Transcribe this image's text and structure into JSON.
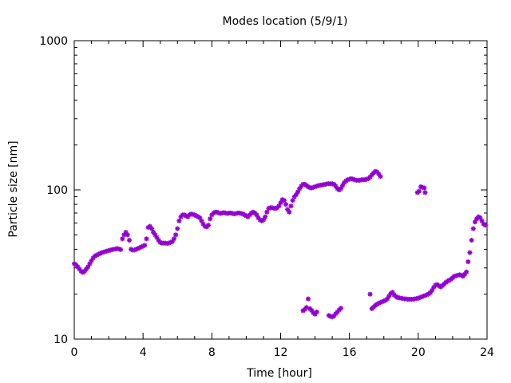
{
  "chart_data": {
    "type": "scatter",
    "title": "Modes location (5/9/1)",
    "xlabel": "Time [hour]",
    "ylabel": "Particle size [nm]",
    "xlim": [
      0,
      24
    ],
    "ylim": [
      10,
      1000
    ],
    "yscale": "log",
    "x_ticks": [
      0,
      4,
      8,
      12,
      16,
      20,
      24
    ],
    "x_tick_labels": [
      "0",
      "4",
      "8",
      "12",
      "16",
      "20",
      "24"
    ],
    "y_ticks": [
      10,
      100,
      1000
    ],
    "y_tick_labels": [
      "10",
      "100",
      "1000"
    ],
    "grid": false,
    "marker_color": "#9400d3",
    "series": [
      {
        "points": [
          [
            0.0,
            32
          ],
          [
            0.1,
            31.5
          ],
          [
            0.2,
            30.5
          ],
          [
            0.3,
            29.5
          ],
          [
            0.4,
            28.5
          ],
          [
            0.5,
            28
          ],
          [
            0.6,
            28.5
          ],
          [
            0.7,
            29.5
          ],
          [
            0.8,
            30.5
          ],
          [
            0.9,
            32
          ],
          [
            1.0,
            33.5
          ],
          [
            1.1,
            35
          ],
          [
            1.2,
            36
          ],
          [
            1.3,
            36.5
          ],
          [
            1.4,
            37
          ],
          [
            1.5,
            37.5
          ],
          [
            1.6,
            38
          ],
          [
            1.7,
            38.3
          ],
          [
            1.8,
            38.6
          ],
          [
            1.9,
            38.9
          ],
          [
            2.0,
            39.2
          ],
          [
            2.1,
            39.5
          ],
          [
            2.2,
            39.8
          ],
          [
            2.3,
            40
          ],
          [
            2.4,
            40.2
          ],
          [
            2.5,
            40.5
          ],
          [
            2.6,
            40.2
          ],
          [
            2.7,
            39.8
          ],
          [
            2.8,
            47
          ],
          [
            2.9,
            50
          ],
          [
            3.0,
            52
          ],
          [
            3.1,
            50
          ],
          [
            3.2,
            46
          ],
          [
            3.3,
            40
          ],
          [
            3.4,
            39.5
          ],
          [
            3.5,
            39.5
          ],
          [
            3.6,
            40
          ],
          [
            3.7,
            40.5
          ],
          [
            3.8,
            41
          ],
          [
            3.9,
            41.5
          ],
          [
            4.0,
            42
          ],
          [
            4.1,
            42.5
          ],
          [
            4.2,
            47
          ],
          [
            4.3,
            56
          ],
          [
            4.4,
            57
          ],
          [
            4.5,
            55
          ],
          [
            4.6,
            52
          ],
          [
            4.7,
            50
          ],
          [
            4.8,
            48
          ],
          [
            4.9,
            46
          ],
          [
            5.0,
            44.5
          ],
          [
            5.1,
            44
          ],
          [
            5.2,
            44
          ],
          [
            5.3,
            44
          ],
          [
            5.4,
            43.8
          ],
          [
            5.5,
            44
          ],
          [
            5.6,
            44.5
          ],
          [
            5.7,
            45
          ],
          [
            5.8,
            47
          ],
          [
            5.9,
            50
          ],
          [
            6.0,
            55
          ],
          [
            6.1,
            62
          ],
          [
            6.2,
            66
          ],
          [
            6.3,
            68
          ],
          [
            6.4,
            68
          ],
          [
            6.5,
            67
          ],
          [
            6.6,
            66
          ],
          [
            6.7,
            68
          ],
          [
            6.8,
            69
          ],
          [
            6.9,
            68.5
          ],
          [
            7.0,
            68
          ],
          [
            7.1,
            67
          ],
          [
            7.2,
            66
          ],
          [
            7.3,
            65
          ],
          [
            7.4,
            62
          ],
          [
            7.5,
            59
          ],
          [
            7.6,
            57
          ],
          [
            7.7,
            56.5
          ],
          [
            7.8,
            58
          ],
          [
            7.9,
            64
          ],
          [
            8.0,
            68
          ],
          [
            8.1,
            70
          ],
          [
            8.2,
            71
          ],
          [
            8.3,
            71
          ],
          [
            8.4,
            70
          ],
          [
            8.5,
            69.5
          ],
          [
            8.6,
            70
          ],
          [
            8.7,
            70.5
          ],
          [
            8.8,
            70
          ],
          [
            8.9,
            69.5
          ],
          [
            9.0,
            70
          ],
          [
            9.1,
            70
          ],
          [
            9.2,
            69.5
          ],
          [
            9.3,
            69
          ],
          [
            9.4,
            69.5
          ],
          [
            9.5,
            70
          ],
          [
            9.6,
            70
          ],
          [
            9.7,
            69.5
          ],
          [
            9.8,
            69
          ],
          [
            9.9,
            68
          ],
          [
            10.0,
            67
          ],
          [
            10.1,
            66
          ],
          [
            10.2,
            68
          ],
          [
            10.3,
            70
          ],
          [
            10.4,
            71
          ],
          [
            10.5,
            70
          ],
          [
            10.6,
            68
          ],
          [
            10.7,
            65
          ],
          [
            10.8,
            63
          ],
          [
            10.9,
            62
          ],
          [
            11.0,
            63
          ],
          [
            11.1,
            66
          ],
          [
            11.2,
            71
          ],
          [
            11.3,
            75
          ],
          [
            11.4,
            76
          ],
          [
            11.5,
            76
          ],
          [
            11.6,
            75.5
          ],
          [
            11.7,
            75
          ],
          [
            11.8,
            76
          ],
          [
            11.9,
            78
          ],
          [
            12.0,
            82
          ],
          [
            12.1,
            86
          ],
          [
            12.2,
            85
          ],
          [
            12.3,
            80
          ],
          [
            12.4,
            74
          ],
          [
            12.5,
            71
          ],
          [
            12.6,
            78
          ],
          [
            12.7,
            85
          ],
          [
            12.8,
            90
          ],
          [
            12.9,
            93
          ],
          [
            13.0,
            97
          ],
          [
            13.1,
            102
          ],
          [
            13.2,
            106
          ],
          [
            13.3,
            109
          ],
          [
            13.4,
            109
          ],
          [
            13.5,
            107
          ],
          [
            13.6,
            105
          ],
          [
            13.7,
            103.5
          ],
          [
            13.8,
            103
          ],
          [
            13.9,
            104
          ],
          [
            14.0,
            105
          ],
          [
            14.1,
            106
          ],
          [
            14.2,
            107
          ],
          [
            14.3,
            107.5
          ],
          [
            14.4,
            108
          ],
          [
            14.5,
            108.5
          ],
          [
            14.6,
            109
          ],
          [
            14.7,
            110
          ],
          [
            14.8,
            110
          ],
          [
            14.9,
            110
          ],
          [
            15.0,
            110
          ],
          [
            15.1,
            109
          ],
          [
            15.2,
            106
          ],
          [
            15.3,
            102
          ],
          [
            15.4,
            100
          ],
          [
            15.5,
            102
          ],
          [
            15.6,
            107
          ],
          [
            15.7,
            112
          ],
          [
            15.8,
            115
          ],
          [
            15.9,
            117
          ],
          [
            16.0,
            118
          ],
          [
            16.1,
            119
          ],
          [
            16.2,
            118
          ],
          [
            16.3,
            117
          ],
          [
            16.4,
            116
          ],
          [
            16.5,
            116
          ],
          [
            16.6,
            116
          ],
          [
            16.7,
            117
          ],
          [
            16.8,
            117
          ],
          [
            16.9,
            117
          ],
          [
            17.0,
            118
          ],
          [
            17.1,
            119
          ],
          [
            17.2,
            122
          ],
          [
            17.3,
            126
          ],
          [
            17.4,
            130
          ],
          [
            17.5,
            133
          ],
          [
            17.6,
            132
          ],
          [
            17.7,
            128
          ],
          [
            17.8,
            123
          ],
          [
            13.3,
            15.5
          ],
          [
            13.4,
            15.8
          ],
          [
            13.5,
            16.3
          ],
          [
            13.6,
            18.6
          ],
          [
            13.7,
            16.0
          ],
          [
            13.8,
            15.6
          ],
          [
            13.9,
            15.0
          ],
          [
            14.0,
            14.7
          ],
          [
            14.1,
            15.2
          ],
          [
            14.8,
            14.4
          ],
          [
            14.9,
            14.2
          ],
          [
            15.0,
            14.1
          ],
          [
            15.1,
            14.3
          ],
          [
            15.2,
            14.8
          ],
          [
            15.3,
            15.2
          ],
          [
            15.4,
            15.7
          ],
          [
            15.5,
            16.1
          ],
          [
            17.2,
            20.0
          ],
          [
            17.3,
            16.0
          ],
          [
            17.4,
            16.4
          ],
          [
            17.5,
            16.8
          ],
          [
            17.6,
            17.1
          ],
          [
            17.7,
            17.4
          ],
          [
            17.8,
            17.6
          ],
          [
            17.9,
            17.8
          ],
          [
            18.0,
            18.0
          ],
          [
            18.1,
            18.2
          ],
          [
            18.2,
            18.6
          ],
          [
            18.3,
            19.4
          ],
          [
            18.4,
            20.2
          ],
          [
            18.5,
            20.6
          ],
          [
            18.6,
            19.8
          ],
          [
            18.7,
            19.3
          ],
          [
            18.8,
            19.0
          ],
          [
            18.9,
            18.9
          ],
          [
            19.0,
            18.8
          ],
          [
            19.1,
            18.7
          ],
          [
            19.2,
            18.6
          ],
          [
            19.3,
            18.6
          ],
          [
            19.4,
            18.5
          ],
          [
            19.5,
            18.5
          ],
          [
            19.6,
            18.5
          ],
          [
            19.7,
            18.5
          ],
          [
            19.8,
            18.6
          ],
          [
            19.9,
            18.7
          ],
          [
            20.0,
            18.8
          ],
          [
            20.1,
            19.0
          ],
          [
            20.2,
            19.2
          ],
          [
            20.3,
            19.4
          ],
          [
            20.4,
            19.6
          ],
          [
            20.5,
            19.8
          ],
          [
            20.6,
            20.1
          ],
          [
            20.7,
            20.5
          ],
          [
            20.8,
            21.2
          ],
          [
            20.9,
            22.2
          ],
          [
            21.0,
            23.0
          ],
          [
            21.1,
            23.2
          ],
          [
            21.2,
            22.8
          ],
          [
            21.3,
            22.4
          ],
          [
            21.4,
            22.8
          ],
          [
            21.5,
            23.4
          ],
          [
            21.6,
            24.0
          ],
          [
            21.7,
            24.4
          ],
          [
            21.8,
            24.8
          ],
          [
            21.9,
            25.2
          ],
          [
            22.0,
            25.8
          ],
          [
            22.1,
            26.4
          ],
          [
            22.2,
            26.6
          ],
          [
            22.3,
            26.8
          ],
          [
            22.4,
            27.0
          ],
          [
            22.5,
            26.8
          ],
          [
            22.6,
            26.4
          ],
          [
            22.7,
            27.2
          ],
          [
            22.8,
            28.2
          ],
          [
            22.9,
            33.0
          ],
          [
            23.0,
            38.0
          ],
          [
            23.1,
            46.0
          ],
          [
            23.2,
            55.0
          ],
          [
            23.3,
            61.0
          ],
          [
            23.4,
            64.0
          ],
          [
            23.5,
            66.0
          ],
          [
            23.6,
            65.0
          ],
          [
            23.7,
            62.0
          ],
          [
            23.8,
            59.0
          ],
          [
            23.9,
            58.0
          ],
          [
            19.95,
            96.0
          ],
          [
            20.05,
            98.0
          ],
          [
            20.15,
            105.0
          ],
          [
            20.25,
            104.0
          ],
          [
            20.35,
            103.0
          ],
          [
            20.4,
            96.0
          ]
        ]
      }
    ]
  }
}
